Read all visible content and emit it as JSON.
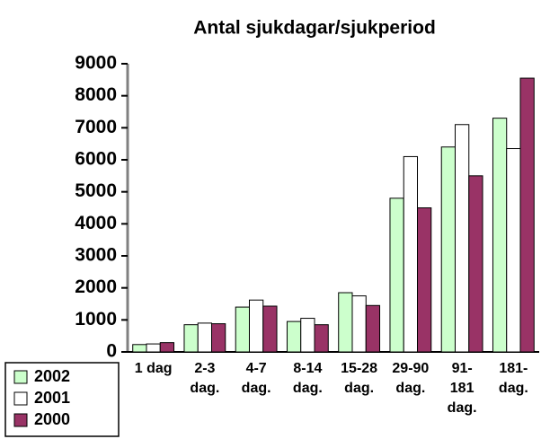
{
  "chart_data": {
    "type": "bar",
    "title": "Antal sjukdagar/sjukperiod",
    "categories": [
      "1 dag",
      "2-3 dag.",
      "4-7 dag.",
      "8-14 dag.",
      "15-28 dag.",
      "29-90 dag.",
      "91-181 dag.",
      "181- dag."
    ],
    "series": [
      {
        "name": "2002",
        "color": "#ccffcc",
        "values": [
          230,
          850,
          1400,
          950,
          1850,
          4800,
          6400,
          7300
        ]
      },
      {
        "name": "2001",
        "color": "#ffffff",
        "values": [
          250,
          900,
          1620,
          1050,
          1750,
          6100,
          7100,
          6350
        ]
      },
      {
        "name": "2000",
        "color": "#993366",
        "values": [
          290,
          880,
          1430,
          850,
          1450,
          4500,
          5500,
          8550
        ]
      }
    ],
    "ylim": [
      0,
      9000
    ],
    "yticks": [
      0,
      1000,
      2000,
      3000,
      4000,
      5000,
      6000,
      7000,
      8000,
      9000
    ],
    "grid": false,
    "legend": "bottom-left"
  }
}
